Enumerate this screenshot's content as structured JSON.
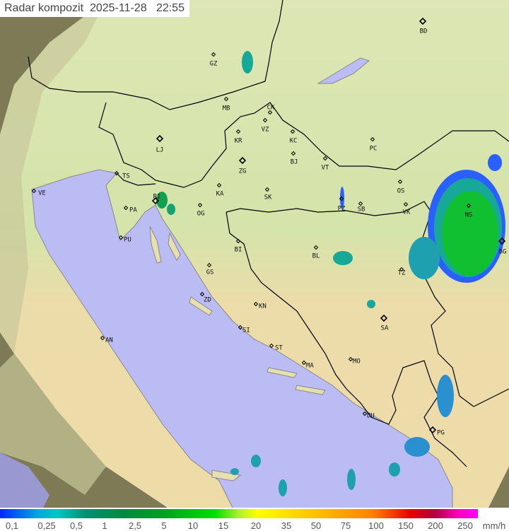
{
  "title": {
    "product": "Radar kompozit",
    "date": "2025-11-28",
    "time": "22:55"
  },
  "legend": {
    "unit": "mm/h",
    "values": [
      "0,1",
      "0,25",
      "0,5",
      "1",
      "2,5",
      "5",
      "10",
      "15",
      "20",
      "35",
      "50",
      "75",
      "100",
      "150",
      "200",
      "250"
    ]
  },
  "cities": [
    "GZ",
    "BD",
    "MB",
    "CK",
    "VZ",
    "KR",
    "KC",
    "PC",
    "LJ",
    "ZG",
    "BJ",
    "VT",
    "TS",
    "VE",
    "RI",
    "KA",
    "SK",
    "OS",
    "PA",
    "PZ",
    "SB",
    "VK",
    "NS",
    "BG",
    "OG",
    "PU",
    "BI",
    "BL",
    "GS",
    "TZ",
    "ZD",
    "KN",
    "SA",
    "SI",
    "AN",
    "ST",
    "MA",
    "MO",
    "DU",
    "PG"
  ],
  "colors": {
    "sea": "#bcbcf4",
    "land_north": "#d6e6b0",
    "land_south": "#ecdca8",
    "outside_coverage": "#7d7a55",
    "rain_light": "#2a60ff",
    "rain_mid": "#18a898",
    "rain_heavy": "#10c030",
    "border": "#000000"
  }
}
